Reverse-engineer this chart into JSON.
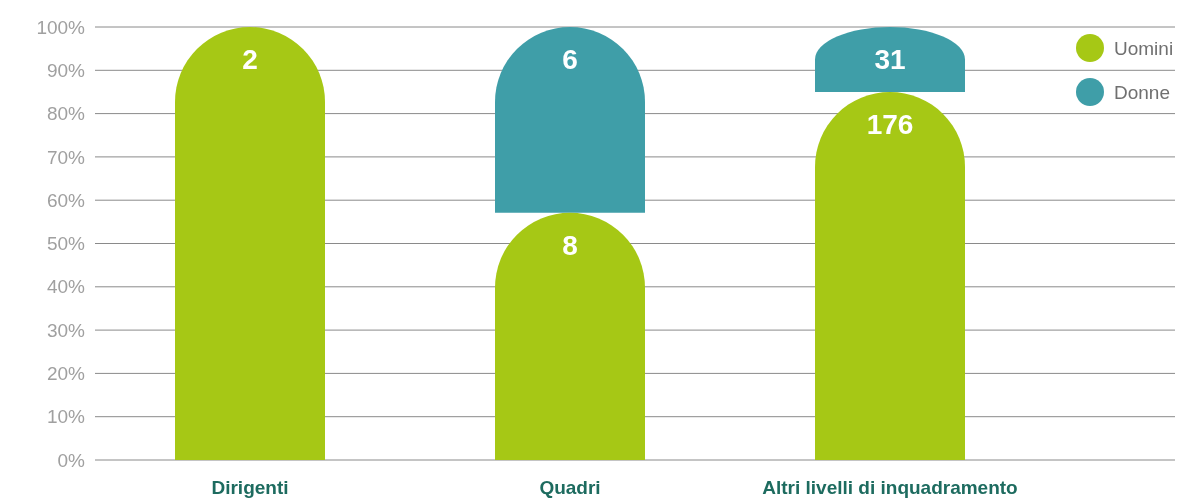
{
  "chart_data": {
    "type": "bar",
    "stacked": true,
    "categories": [
      "Dirigenti",
      "Quadri",
      "Altri livelli di inquadramento"
    ],
    "series": [
      {
        "name": "Uomini",
        "color": "#a6c815",
        "values": [
          100,
          57.1,
          85
        ]
      },
      {
        "name": "Donne",
        "color": "#3f9ea8",
        "values": [
          0,
          42.9,
          15
        ]
      }
    ],
    "annotations": [
      {
        "text": "2",
        "x": "Dirigenti",
        "y": 100
      },
      {
        "text": "8",
        "x": "Quadri",
        "y": 57.1
      },
      {
        "text": "176",
        "x": "Altri livelli di inquadramento",
        "y": 85
      },
      {
        "text": "6",
        "x": "Quadri",
        "y": 100
      },
      {
        "text": "31",
        "x": "Altri livelli di inquadramento",
        "y": 100
      }
    ],
    "ylim": [
      0,
      100
    ],
    "yticks": [
      {
        "value": 0,
        "label": "0%"
      },
      {
        "value": 10,
        "label": "10%"
      },
      {
        "value": 20,
        "label": "20%"
      },
      {
        "value": 30,
        "label": "30%"
      },
      {
        "value": 40,
        "label": "40%"
      },
      {
        "value": 50,
        "label": "50%"
      },
      {
        "value": 60,
        "label": "60%"
      },
      {
        "value": 70,
        "label": "70%"
      },
      {
        "value": 80,
        "label": "80%"
      },
      {
        "value": 90,
        "label": "90%"
      },
      {
        "value": 100,
        "label": "100%"
      }
    ],
    "grid": "y",
    "legend": "top right"
  }
}
